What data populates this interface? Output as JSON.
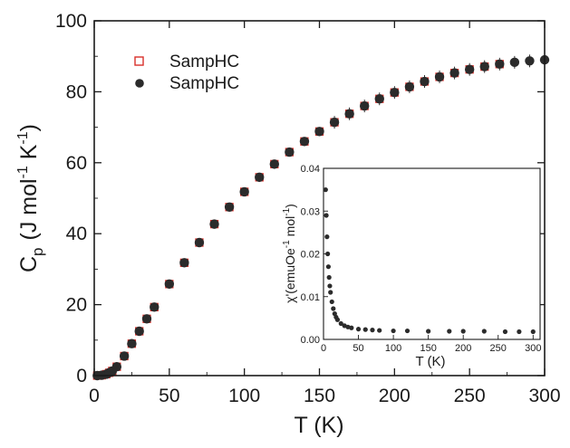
{
  "chart_data": [
    {
      "type": "scatter",
      "title": "",
      "xlabel": "T (K)",
      "ylabel": "C",
      "ylabel_sub": "p",
      "ylabel_units": "(J mol",
      "ylabel_exp1": "-1",
      "ylabel_mid": " K",
      "ylabel_exp2": "-1",
      "ylabel_close": ")",
      "xlim": [
        0,
        300
      ],
      "ylim": [
        0,
        100
      ],
      "x_ticks": [
        0,
        50,
        100,
        150,
        200,
        250,
        300
      ],
      "y_ticks": [
        0,
        20,
        40,
        60,
        80,
        100
      ],
      "x_tick_labels": [
        "0",
        "50",
        "100",
        "150",
        "200",
        "250",
        "300"
      ],
      "y_tick_labels": [
        "0",
        "20",
        "40",
        "60",
        "80",
        "100"
      ],
      "legend_position": "top-left",
      "grid": false,
      "series": [
        {
          "name": "SampHC",
          "marker": "open-square",
          "color": "#d9302a",
          "x": [
            2,
            5,
            8,
            10,
            12,
            15,
            20,
            25,
            30,
            35,
            40,
            50,
            60,
            70,
            80,
            90,
            100,
            110,
            120,
            130,
            140,
            150,
            160,
            170,
            180,
            190,
            200,
            210,
            220,
            230,
            240,
            250,
            260,
            270
          ],
          "y": [
            0.0,
            0.1,
            0.4,
            0.8,
            1.3,
            2.5,
            5.5,
            9.0,
            12.5,
            16.0,
            19.3,
            25.8,
            31.8,
            37.5,
            42.7,
            47.5,
            51.8,
            55.9,
            59.6,
            63.0,
            66.0,
            68.8,
            71.4,
            73.8,
            76.0,
            78.0,
            79.8,
            81.4,
            82.9,
            84.2,
            85.3,
            86.3,
            87.1,
            87.8
          ]
        },
        {
          "name": "SampHC",
          "marker": "filled-circle",
          "color": "#2b2b2b",
          "x": [
            2,
            5,
            8,
            10,
            12,
            15,
            20,
            25,
            30,
            35,
            40,
            50,
            60,
            70,
            80,
            90,
            100,
            110,
            120,
            130,
            140,
            150,
            160,
            170,
            180,
            190,
            200,
            210,
            220,
            230,
            240,
            250,
            260,
            270,
            280,
            290,
            300
          ],
          "y": [
            0.0,
            0.1,
            0.4,
            0.8,
            1.3,
            2.5,
            5.5,
            9.0,
            12.5,
            16.0,
            19.3,
            25.8,
            31.8,
            37.5,
            42.7,
            47.5,
            51.8,
            55.9,
            59.6,
            63.0,
            66.0,
            68.8,
            71.4,
            73.8,
            76.0,
            78.0,
            79.8,
            81.4,
            82.9,
            84.2,
            85.3,
            86.3,
            87.1,
            87.8,
            88.3,
            88.7,
            89.0
          ]
        }
      ]
    },
    {
      "type": "scatter",
      "title": "",
      "xlabel": "T (K)",
      "ylabel": "χ'(emuOe",
      "ylabel_exp1": "-1",
      "ylabel_mid": "mol",
      "ylabel_exp2": "-1",
      "ylabel_close": ")",
      "xlim": [
        0,
        310
      ],
      "ylim": [
        0,
        0.04
      ],
      "x_ticks": [
        0,
        50,
        100,
        150,
        200,
        250,
        300
      ],
      "y_ticks": [
        0,
        0.01,
        0.02,
        0.03,
        0.04
      ],
      "x_tick_labels": [
        "0",
        "50",
        "100",
        "150",
        "200",
        "250",
        "300"
      ],
      "y_tick_labels": [
        "0.00",
        "0.01",
        "0.02",
        "0.03",
        "0.04"
      ],
      "grid": false,
      "series": [
        {
          "marker": "filled-circle",
          "color": "#2b2b2b",
          "x": [
            3,
            4,
            5,
            6,
            7,
            8,
            9,
            10,
            12,
            14,
            16,
            18,
            20,
            25,
            30,
            35,
            40,
            50,
            60,
            70,
            80,
            100,
            120,
            150,
            180,
            200,
            230,
            260,
            280,
            300
          ],
          "y": [
            0.035,
            0.029,
            0.024,
            0.02,
            0.017,
            0.0145,
            0.0125,
            0.011,
            0.0088,
            0.0072,
            0.006,
            0.0052,
            0.0046,
            0.0037,
            0.0032,
            0.0029,
            0.0027,
            0.0024,
            0.0023,
            0.0022,
            0.0021,
            0.002,
            0.002,
            0.0019,
            0.0019,
            0.0019,
            0.0019,
            0.0018,
            0.0018,
            0.0018
          ]
        }
      ]
    }
  ]
}
